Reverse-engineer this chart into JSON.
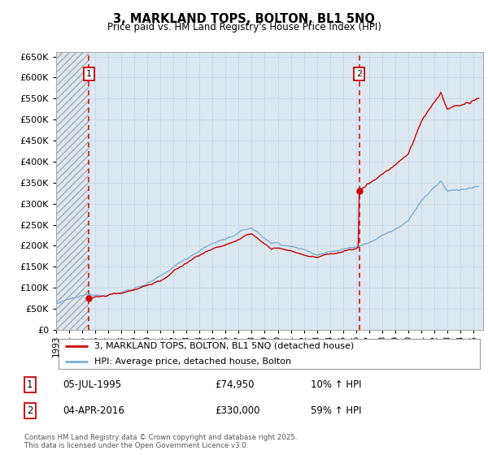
{
  "title": "3, MARKLAND TOPS, BOLTON, BL1 5NQ",
  "subtitle": "Price paid vs. HM Land Registry's House Price Index (HPI)",
  "ylim": [
    0,
    660000
  ],
  "yticks": [
    0,
    50000,
    100000,
    150000,
    200000,
    250000,
    300000,
    350000,
    400000,
    450000,
    500000,
    550000,
    600000,
    650000
  ],
  "xlim_start": 1993.0,
  "xlim_end": 2025.75,
  "xticks": [
    1993,
    1994,
    1995,
    1996,
    1997,
    1998,
    1999,
    2000,
    2001,
    2002,
    2003,
    2004,
    2005,
    2006,
    2007,
    2008,
    2009,
    2010,
    2011,
    2012,
    2013,
    2014,
    2015,
    2016,
    2017,
    2018,
    2019,
    2020,
    2021,
    2022,
    2023,
    2024,
    2025
  ],
  "sale1_x": 1995.503,
  "sale1_y": 74950,
  "sale2_x": 2016.253,
  "sale2_y": 330000,
  "hpi_color": "#7aafd4",
  "price_color": "#cc0000",
  "annotation_box_color": "#cc0000",
  "grid_color": "#c8d8e8",
  "plot_bg": "#dce8f0",
  "legend_line1": "3, MARKLAND TOPS, BOLTON, BL1 5NQ (detached house)",
  "legend_line2": "HPI: Average price, detached house, Bolton",
  "note1_label": "1",
  "note1_date": "05-JUL-1995",
  "note1_price": "£74,950",
  "note1_hpi": "10% ↑ HPI",
  "note2_label": "2",
  "note2_date": "04-APR-2016",
  "note2_price": "£330,000",
  "note2_hpi": "59% ↑ HPI",
  "copyright": "Contains HM Land Registry data © Crown copyright and database right 2025.\nThis data is licensed under the Open Government Licence v3.0."
}
